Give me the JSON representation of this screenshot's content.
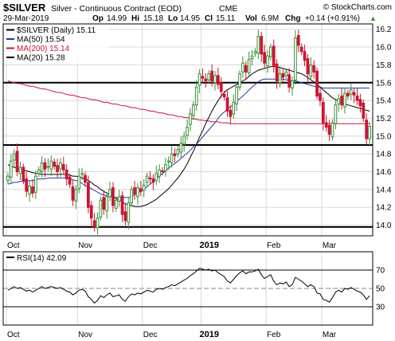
{
  "header": {
    "symbol": "$SILVER",
    "name": "Silver - Continuous Contract (EOD)",
    "exchange": "CME",
    "watermark": "© StockCharts.com",
    "date": "29-Mar-2019",
    "open_label": "Op",
    "open": "14.99",
    "high_label": "Hi",
    "high": "15.18",
    "low_label": "Lo",
    "low": "14.95",
    "close_label": "Cl",
    "close": "15.11",
    "vol_label": "Vol",
    "vol": "6.9M",
    "chg_label": "Chg",
    "chg": "+0.14 (+0.91%)",
    "chg_arrow": "▲"
  },
  "colors": {
    "up": "#3a8f3a",
    "down": "#cc1433",
    "ma50": "#1f3a9e",
    "ma200": "#cc1433",
    "ma20": "#000000",
    "grid": "#d8d8d8",
    "axis": "#000000"
  },
  "chart_data": [
    {
      "type": "candlestick",
      "legend": [
        {
          "label": "$SILVER (Daily) 15.11",
          "swatch": "#000000"
        },
        {
          "label": "MA(50) 15.54",
          "swatch": "#1f3a9e"
        },
        {
          "label": "MA(200) 15.14",
          "swatch": "#cc1433"
        },
        {
          "label": "MA(20) 15.28",
          "swatch": "#000000"
        }
      ],
      "y_ticks": [
        14.0,
        14.2,
        14.4,
        14.6,
        14.8,
        15.0,
        15.2,
        15.4,
        15.6,
        15.8,
        16.0,
        16.2
      ],
      "ylim": [
        13.88,
        16.26
      ],
      "x_labels": [
        "Oct",
        "Nov",
        "Dec",
        "2019",
        "Feb",
        "Mar"
      ],
      "x_label_index": [
        0,
        23,
        44,
        63,
        84,
        102
      ],
      "horizontal_lines": [
        15.6,
        14.9,
        13.98
      ],
      "closes": [
        14.55,
        14.72,
        14.8,
        14.6,
        14.65,
        14.5,
        14.38,
        14.44,
        14.36,
        14.55,
        14.62,
        14.7,
        14.63,
        14.66,
        14.72,
        14.66,
        14.6,
        14.7,
        14.62,
        14.52,
        14.46,
        14.28,
        14.4,
        14.55,
        14.58,
        14.48,
        14.2,
        14.08,
        13.98,
        14.08,
        14.28,
        14.18,
        14.32,
        14.4,
        14.22,
        14.28,
        14.32,
        14.12,
        14.05,
        14.25,
        14.4,
        14.35,
        14.42,
        14.38,
        14.45,
        14.55,
        14.52,
        14.48,
        14.58,
        14.62,
        14.6,
        14.68,
        14.72,
        14.8,
        14.78,
        14.85,
        14.92,
        15.0,
        15.1,
        15.25,
        15.35,
        15.55,
        15.7,
        15.65,
        15.62,
        15.7,
        15.62,
        15.68,
        15.58,
        15.5,
        15.44,
        15.28,
        15.22,
        15.38,
        15.55,
        15.7,
        15.82,
        15.72,
        15.86,
        15.9,
        15.95,
        16.12,
        15.92,
        15.82,
        15.9,
        16.0,
        15.78,
        15.62,
        15.7,
        15.66,
        15.72,
        15.55,
        15.62,
        16.1,
        16.02,
        15.95,
        15.85,
        15.7,
        15.8,
        15.72,
        15.45,
        15.4,
        15.15,
        15.1,
        15.02,
        15.15,
        15.35,
        15.42,
        15.35,
        15.48,
        15.45,
        15.52,
        15.46,
        15.4,
        15.34,
        15.2,
        14.97,
        15.11
      ],
      "series": [
        {
          "name": "MA(50)",
          "values": [
            14.46,
            14.47,
            14.48,
            14.48,
            14.49,
            14.49,
            14.49,
            14.5,
            14.5,
            14.51,
            14.52,
            14.52,
            14.52,
            14.53,
            14.53,
            14.53,
            14.53,
            14.53,
            14.53,
            14.53,
            14.52,
            14.51,
            14.5,
            14.49,
            14.47,
            14.44,
            14.43,
            14.41,
            14.39,
            14.37,
            14.35,
            14.34,
            14.33,
            14.32,
            14.31,
            14.31,
            14.31,
            14.31,
            14.31,
            14.31,
            14.32,
            14.34,
            14.36,
            14.38,
            14.4,
            14.43,
            14.46,
            14.49,
            14.52,
            14.55,
            14.58,
            14.61,
            14.64,
            14.67,
            14.69,
            14.72,
            14.75,
            14.78,
            14.81,
            14.84,
            14.88,
            14.91,
            14.95,
            14.99,
            15.03,
            15.07,
            15.11,
            15.15,
            15.2,
            15.24,
            15.27,
            15.3,
            15.33,
            15.36,
            15.39,
            15.42,
            15.45,
            15.48,
            15.52,
            15.55,
            15.58,
            15.61,
            15.63,
            15.64,
            15.64,
            15.64,
            15.64,
            15.64,
            15.64,
            15.64,
            15.63,
            15.63,
            15.62,
            15.62,
            15.61,
            15.6,
            15.59,
            15.58,
            15.57,
            15.56,
            15.55,
            15.55,
            15.54,
            15.54,
            15.54,
            15.54,
            15.54,
            15.54,
            15.54,
            15.54,
            15.54,
            15.54,
            15.54,
            15.54,
            15.54,
            15.54,
            15.54,
            15.54
          ]
        },
        {
          "name": "MA(200)",
          "values": [
            15.62,
            15.61,
            15.6,
            15.59,
            15.59,
            15.58,
            15.57,
            15.56,
            15.56,
            15.55,
            15.54,
            15.53,
            15.53,
            15.52,
            15.51,
            15.5,
            15.49,
            15.49,
            15.48,
            15.47,
            15.46,
            15.46,
            15.45,
            15.44,
            15.43,
            15.43,
            15.42,
            15.41,
            15.41,
            15.4,
            15.39,
            15.38,
            15.38,
            15.37,
            15.36,
            15.36,
            15.35,
            15.34,
            15.34,
            15.33,
            15.32,
            15.32,
            15.31,
            15.3,
            15.3,
            15.29,
            15.28,
            15.28,
            15.27,
            15.26,
            15.26,
            15.25,
            15.24,
            15.24,
            15.23,
            15.22,
            15.22,
            15.21,
            15.21,
            15.2,
            15.19,
            15.19,
            15.18,
            15.18,
            15.17,
            15.17,
            15.16,
            15.16,
            15.16,
            15.15,
            15.15,
            15.15,
            15.14,
            15.14,
            15.14,
            15.14,
            15.14,
            15.14,
            15.14,
            15.14,
            15.14,
            15.14,
            15.14,
            15.14,
            15.14,
            15.14,
            15.14,
            15.14,
            15.14,
            15.14,
            15.14,
            15.14,
            15.14,
            15.14,
            15.14,
            15.14,
            15.14,
            15.14,
            15.14,
            15.14,
            15.14,
            15.14,
            15.14,
            15.14,
            15.14,
            15.14,
            15.14,
            15.14,
            15.14,
            15.14,
            15.14,
            15.14,
            15.14,
            15.14,
            15.14,
            15.14,
            15.14,
            15.14
          ]
        },
        {
          "name": "MA(20)",
          "values": [
            14.68,
            14.66,
            14.65,
            14.64,
            14.63,
            14.62,
            14.61,
            14.6,
            14.59,
            14.58,
            14.58,
            14.57,
            14.57,
            14.57,
            14.57,
            14.57,
            14.57,
            14.57,
            14.57,
            14.57,
            14.56,
            14.55,
            14.55,
            14.54,
            14.53,
            14.52,
            14.5,
            14.48,
            14.45,
            14.43,
            14.4,
            14.38,
            14.36,
            14.34,
            14.32,
            14.3,
            14.28,
            14.26,
            14.24,
            14.23,
            14.22,
            14.21,
            14.21,
            14.21,
            14.22,
            14.23,
            14.25,
            14.27,
            14.29,
            14.32,
            14.35,
            14.38,
            14.41,
            14.45,
            14.49,
            14.53,
            14.58,
            14.63,
            14.69,
            14.76,
            14.83,
            14.91,
            14.99,
            15.06,
            15.14,
            15.21,
            15.28,
            15.34,
            15.4,
            15.45,
            15.49,
            15.52,
            15.54,
            15.56,
            15.58,
            15.6,
            15.62,
            15.64,
            15.67,
            15.7,
            15.72,
            15.74,
            15.75,
            15.76,
            15.77,
            15.78,
            15.78,
            15.78,
            15.77,
            15.76,
            15.75,
            15.74,
            15.73,
            15.72,
            15.71,
            15.7,
            15.68,
            15.66,
            15.63,
            15.61,
            15.58,
            15.55,
            15.52,
            15.49,
            15.46,
            15.43,
            15.41,
            15.39,
            15.37,
            15.36,
            15.35,
            15.34,
            15.33,
            15.32,
            15.31,
            15.3,
            15.29,
            15.28
          ]
        }
      ]
    },
    {
      "type": "line",
      "legend": [
        {
          "label": "RSI(14) 42.09",
          "swatch": "#000000"
        }
      ],
      "y_ticks": [
        30,
        50,
        70
      ],
      "ylim": [
        10,
        90
      ],
      "reference_lines": [
        30,
        70
      ],
      "midline": 50,
      "x_labels": [
        "Oct",
        "Nov",
        "Dec",
        "2019",
        "Feb",
        "Mar"
      ],
      "series": [
        {
          "name": "RSI(14)",
          "values": [
            48,
            50,
            52,
            50,
            51,
            49,
            47,
            48,
            46,
            48,
            50,
            52,
            50,
            51,
            52,
            51,
            50,
            51,
            49,
            47,
            46,
            43,
            45,
            48,
            49,
            47,
            41,
            38,
            34,
            37,
            42,
            40,
            43,
            45,
            41,
            42,
            43,
            38,
            36,
            41,
            44,
            43,
            45,
            44,
            46,
            48,
            47,
            46,
            49,
            50,
            49,
            51,
            52,
            54,
            53,
            55,
            57,
            59,
            61,
            64,
            66,
            69,
            72,
            71,
            70,
            71,
            69,
            70,
            67,
            65,
            63,
            58,
            56,
            60,
            64,
            67,
            69,
            66,
            68,
            68,
            69,
            71,
            65,
            61,
            63,
            65,
            58,
            54,
            56,
            55,
            57,
            52,
            54,
            62,
            60,
            58,
            55,
            52,
            54,
            52,
            45,
            44,
            38,
            37,
            35,
            40,
            46,
            48,
            46,
            50,
            49,
            51,
            49,
            47,
            46,
            43,
            38,
            42
          ]
        }
      ]
    }
  ]
}
